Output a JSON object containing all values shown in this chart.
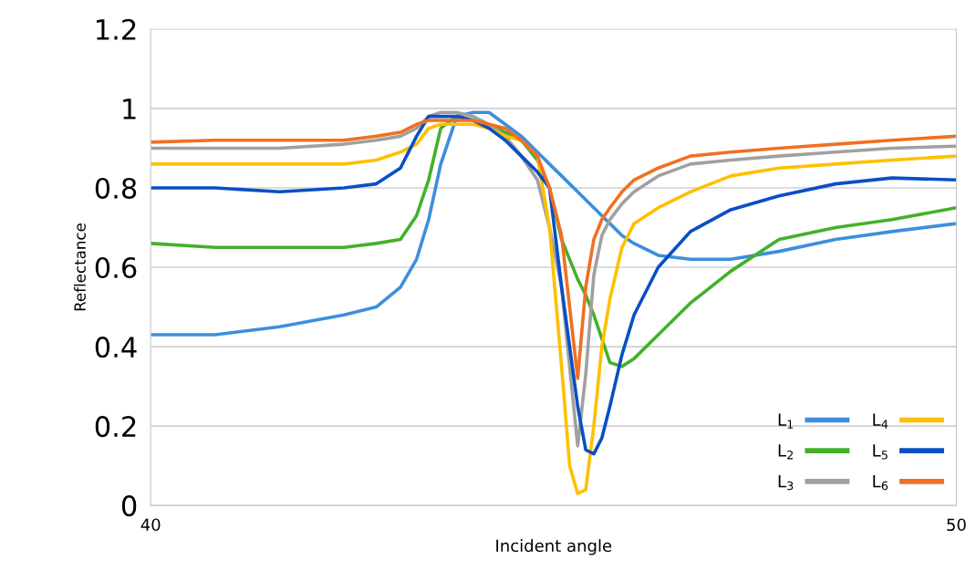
{
  "chart_data": {
    "type": "line",
    "xlabel": "Incident angle",
    "ylabel": "Reflectance",
    "x": [
      40,
      40.8,
      41.6,
      42.4,
      42.8,
      43.1,
      43.3,
      43.45,
      43.6,
      43.8,
      44.0,
      44.2,
      44.4,
      44.6,
      44.8,
      44.95,
      45.1,
      45.2,
      45.3,
      45.4,
      45.5,
      45.6,
      45.7,
      45.85,
      46.0,
      46.3,
      46.7,
      47.2,
      47.8,
      48.5,
      49.2,
      50
    ],
    "series": [
      {
        "name": "L$_{1}$",
        "color": "#3c8fdc",
        "values": [
          0.43,
          0.43,
          0.45,
          0.48,
          0.5,
          0.55,
          0.62,
          0.72,
          0.86,
          0.98,
          0.99,
          0.99,
          0.96,
          0.93,
          0.89,
          0.86,
          0.83,
          0.81,
          0.79,
          0.77,
          0.75,
          0.73,
          0.71,
          0.68,
          0.66,
          0.63,
          0.62,
          0.62,
          0.64,
          0.67,
          0.69,
          0.71
        ]
      },
      {
        "name": "L$_{2}$",
        "color": "#44b02a",
        "values": [
          0.66,
          0.65,
          0.65,
          0.65,
          0.66,
          0.67,
          0.73,
          0.82,
          0.95,
          0.98,
          0.97,
          0.96,
          0.94,
          0.92,
          0.87,
          0.8,
          0.67,
          0.62,
          0.57,
          0.53,
          0.48,
          0.42,
          0.36,
          0.35,
          0.37,
          0.43,
          0.51,
          0.59,
          0.67,
          0.7,
          0.72,
          0.75
        ]
      },
      {
        "name": "L$_{3}$",
        "color": "#a0a0a0",
        "values": [
          0.9,
          0.9,
          0.9,
          0.91,
          0.92,
          0.93,
          0.95,
          0.98,
          0.99,
          0.99,
          0.98,
          0.96,
          0.93,
          0.88,
          0.82,
          0.7,
          0.55,
          0.35,
          0.15,
          0.33,
          0.58,
          0.68,
          0.72,
          0.76,
          0.79,
          0.83,
          0.86,
          0.87,
          0.88,
          0.89,
          0.9,
          0.905
        ]
      },
      {
        "name": "L$_{4}$",
        "color": "#ffc000",
        "values": [
          0.86,
          0.86,
          0.86,
          0.86,
          0.87,
          0.89,
          0.91,
          0.95,
          0.96,
          0.96,
          0.96,
          0.95,
          0.93,
          0.92,
          0.88,
          0.7,
          0.35,
          0.1,
          0.03,
          0.04,
          0.2,
          0.4,
          0.52,
          0.65,
          0.71,
          0.75,
          0.79,
          0.83,
          0.85,
          0.86,
          0.87,
          0.88
        ]
      },
      {
        "name": "L$_{5}$",
        "color": "#0a4fc4",
        "values": [
          0.8,
          0.8,
          0.79,
          0.8,
          0.81,
          0.85,
          0.93,
          0.98,
          0.98,
          0.98,
          0.97,
          0.95,
          0.92,
          0.88,
          0.84,
          0.8,
          0.55,
          0.4,
          0.25,
          0.14,
          0.13,
          0.17,
          0.25,
          0.38,
          0.48,
          0.6,
          0.69,
          0.745,
          0.78,
          0.81,
          0.825,
          0.82
        ]
      },
      {
        "name": "L$_{6}$",
        "color": "#f07022",
        "values": [
          0.915,
          0.92,
          0.92,
          0.92,
          0.93,
          0.94,
          0.96,
          0.97,
          0.97,
          0.97,
          0.97,
          0.96,
          0.95,
          0.92,
          0.88,
          0.8,
          0.68,
          0.5,
          0.32,
          0.55,
          0.67,
          0.72,
          0.75,
          0.79,
          0.82,
          0.85,
          0.88,
          0.89,
          0.9,
          0.91,
          0.92,
          0.93
        ]
      }
    ],
    "xlim": [
      40,
      50
    ],
    "xticks": [
      40,
      50
    ],
    "ylim": [
      0,
      1.2
    ],
    "yticks": [
      {
        "value": 0,
        "label": "0"
      },
      0.2,
      0.4,
      0.6,
      0.8,
      {
        "value": 1,
        "label": "1"
      },
      1.2
    ],
    "grid": "y",
    "legend": "bottom right",
    "marker": "none",
    "line_style": "solid"
  }
}
